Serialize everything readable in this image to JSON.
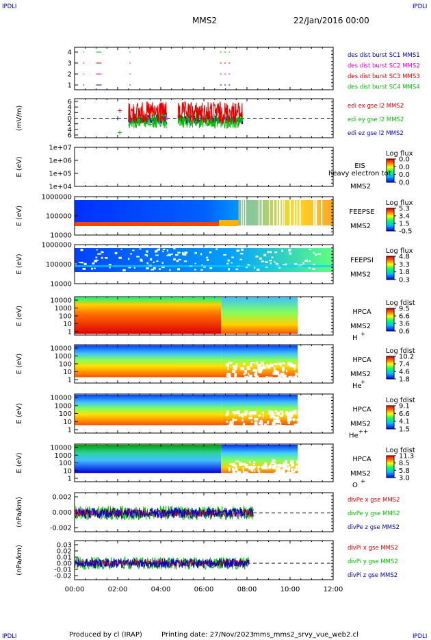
{
  "header": {
    "logo_left": "IPDLI",
    "logo_right": "IPDLI",
    "title": "MMS2",
    "date": "22/Jan/2016 00:00"
  },
  "footer": {
    "logo_left": "IPDLI",
    "logo_right": "IPDLI",
    "produced_by": "Produced by cl (IRAP)",
    "printing_date": "Printing date: 27/Nov/2023",
    "file_name": "mms_mms2_srvy_vue_web2.cl"
  },
  "colors": {
    "red": "#e00000",
    "green": "#00c000",
    "blue": "#0000c0",
    "magenta": "#e000e0",
    "dashed": "#000000"
  },
  "chart_data": [
    {
      "id": "burst",
      "type": "line",
      "xlim": [
        "00:00",
        "12:00"
      ],
      "yticks": [
        "1",
        "2",
        "3",
        "4"
      ],
      "legend": [
        "des dist burst SC1 MMS1",
        "des dist burst SC2 MMS2",
        "des dist burst SC3 MMS3",
        "des dist burst SC4 MMS4"
      ],
      "legend_colors": [
        "#0000c0",
        "#e000e0",
        "#e00000",
        "#00c000"
      ]
    },
    {
      "id": "edi",
      "type": "line",
      "ylabel": "(mV/m)",
      "yticks": [
        "6",
        "4",
        "2",
        "0",
        "2",
        "4",
        "6"
      ],
      "legend": [
        "edi ex gse l2 MMS2",
        "edi ey gse l2 MMS2",
        "edi ez gse l2 MMS2"
      ],
      "legend_colors": [
        "#e00000",
        "#00c000",
        "#0000c0"
      ]
    },
    {
      "id": "eis",
      "type": "heatmap",
      "ylabel": "E (eV)",
      "yticks": [
        "1e+04",
        "1e+05",
        "1e+06",
        "1e+07"
      ],
      "label_top": "EIS",
      "label_over": "heavy electron tot",
      "label_bottom": "MMS2",
      "cbar_title": "Log flux",
      "cbar_ticks": [
        "0.0",
        "0.0",
        "0.0",
        "0.0"
      ]
    },
    {
      "id": "feepse",
      "type": "heatmap",
      "ylabel": "E (eV)",
      "yticks": [
        "10000",
        "100000",
        "1000000"
      ],
      "label_top": "FEEPSE",
      "label_bottom": "MMS2",
      "cbar_title": "Log flux",
      "cbar_ticks": [
        "5.3",
        "3.4",
        "1.5",
        "-0.5"
      ]
    },
    {
      "id": "feepsi",
      "type": "heatmap",
      "ylabel": "E (eV)",
      "yticks": [
        "10000",
        "100000",
        "1000000"
      ],
      "label_top": "FEEPSI",
      "label_bottom": "MMS2",
      "cbar_title": "Log flux",
      "cbar_ticks": [
        "4.8",
        "3.3",
        "1.8",
        "0.3"
      ]
    },
    {
      "id": "hpca_h",
      "type": "heatmap",
      "ylabel": "E (eV)",
      "yticks": [
        "1",
        "10",
        "100",
        "1000",
        "10000"
      ],
      "label_top": "HPCA",
      "label_bottom": "MMS2",
      "species": "H",
      "charge": "+",
      "cbar_title": "Log fdist",
      "cbar_ticks": [
        "9.5",
        "6.6",
        "3.6",
        "0.6"
      ]
    },
    {
      "id": "hpca_he",
      "type": "heatmap",
      "ylabel": "E (eV)",
      "yticks": [
        "1",
        "10",
        "100",
        "1000",
        "10000"
      ],
      "label_top": "HPCA",
      "label_bottom": "MMS2",
      "species": "He",
      "charge": "+",
      "cbar_title": "Log fdist",
      "cbar_ticks": [
        "10.2",
        "7.4",
        "4.6",
        "1.8"
      ]
    },
    {
      "id": "hpca_hepp",
      "type": "heatmap",
      "ylabel": "E (eV)",
      "yticks": [
        "1",
        "10",
        "100",
        "1000",
        "10000"
      ],
      "label_top": "HPCA",
      "label_bottom": "MMS2",
      "species": "He",
      "charge": "++",
      "cbar_title": "Log fdist",
      "cbar_ticks": [
        "9.1",
        "6.6",
        "4.1",
        "1.5"
      ]
    },
    {
      "id": "hpca_o",
      "type": "heatmap",
      "ylabel": "E (eV)",
      "yticks": [
        "1",
        "10",
        "100",
        "1000",
        "10000"
      ],
      "label_top": "HPCA",
      "label_bottom": "MMS2",
      "species": "O",
      "charge": "+",
      "cbar_title": "Log fdist",
      "cbar_ticks": [
        "11.3",
        "8.5",
        "5.8",
        "3.0"
      ]
    },
    {
      "id": "divpe",
      "type": "line",
      "ylabel": "(nPa/km)",
      "yticks": [
        "-0.002",
        "0.000",
        "0.002"
      ],
      "legend": [
        "divPe x gse MMS2",
        "divPe y gse MMS2",
        "divPe z gse MMS2"
      ],
      "legend_colors": [
        "#e00000",
        "#00c000",
        "#0000c0"
      ]
    },
    {
      "id": "divpi",
      "type": "line",
      "ylabel": "(nPa/km)",
      "yticks": [
        "-0.02",
        "-0.01",
        "0.00",
        "0.01",
        "0.02",
        "0.03"
      ],
      "legend": [
        "divPi x gse MMS2",
        "divPi y gse MMS2",
        "divPi z gse MMS2"
      ],
      "legend_colors": [
        "#e00000",
        "#00c000",
        "#0000c0"
      ]
    }
  ],
  "x_axis": {
    "ticks": [
      "00:00",
      "02:00",
      "04:00",
      "06:00",
      "08:00",
      "10:00",
      "12:00"
    ]
  }
}
